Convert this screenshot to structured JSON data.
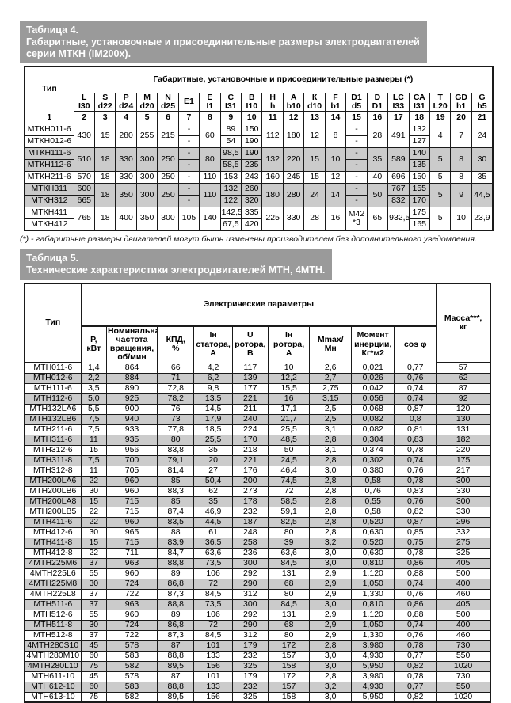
{
  "colors": {
    "title_bar_bg": "#9a9a9a",
    "title_text": "#ffffff",
    "row_shade": "#cbcbcb",
    "border": "#1a1a1a",
    "page_bg": "#ffffff"
  },
  "table4": {
    "title_lines": [
      "Таблица  4.",
      "Габаритные, установочные и присоединительные размеры электродвигателей",
      "серии МТКН (IM200x)."
    ],
    "footnote": "(*) - габаритные размеры двигателей могут быть изменены производителем без дополнительного уведомления.",
    "head": [
      [
        {
          "t": "Тип",
          "rs": 2
        },
        {
          "t": "Габаритные, установочные и присоединительные размеры (*)",
          "cs": 20
        }
      ],
      [
        {
          "t": "L\nI30"
        },
        {
          "t": "S\nd22"
        },
        {
          "t": "P\nd24"
        },
        {
          "t": "M\nd20"
        },
        {
          "t": "N\nd25"
        },
        {
          "t": "Е1"
        },
        {
          "t": "Е\nI1"
        },
        {
          "t": "С\nI31"
        },
        {
          "t": "В\nI10"
        },
        {
          "t": "Н\nh"
        },
        {
          "t": "А\nb10"
        },
        {
          "t": "К\nd10"
        },
        {
          "t": "F\nb1"
        },
        {
          "t": "D1\nd5"
        },
        {
          "t": "D\nD1"
        },
        {
          "t": "LC\nI33"
        },
        {
          "t": "СА\nI31"
        },
        {
          "t": "Т\nL20"
        },
        {
          "t": "GD\nh1"
        },
        {
          "t": "G\nh5"
        }
      ],
      [
        "1",
        "2",
        "3",
        "4",
        "5",
        "6",
        "7",
        "8",
        "9",
        "10",
        "11",
        "12",
        "13",
        "14",
        "15",
        "16",
        "17",
        "18",
        "19",
        "20",
        "21"
      ]
    ],
    "rows": [
      {
        "shade": false,
        "cells": [
          "МТКН011-6",
          {
            "t": "430",
            "rs": 2
          },
          {
            "t": "15",
            "rs": 2
          },
          {
            "t": "280",
            "rs": 2
          },
          {
            "t": "255",
            "rs": 2
          },
          {
            "t": "215",
            "rs": 2
          },
          "-",
          {
            "t": "60",
            "rs": 2
          },
          "89",
          "150",
          {
            "t": "112",
            "rs": 2
          },
          {
            "t": "180",
            "rs": 2
          },
          {
            "t": "12",
            "rs": 2
          },
          {
            "t": "8",
            "rs": 2
          },
          "-",
          {
            "t": "28",
            "rs": 2
          },
          {
            "t": "491",
            "rs": 2
          },
          "132",
          {
            "t": "4",
            "rs": 2
          },
          {
            "t": "7",
            "rs": 2
          },
          {
            "t": "24",
            "rs": 2
          }
        ]
      },
      {
        "shade": false,
        "cells": [
          "МТКН012-6",
          "-",
          "54",
          "190",
          "-",
          "127"
        ]
      },
      {
        "shade": true,
        "cells": [
          "МТКН111-6",
          {
            "t": "510",
            "rs": 2
          },
          {
            "t": "18",
            "rs": 2
          },
          {
            "t": "330",
            "rs": 2
          },
          {
            "t": "300",
            "rs": 2
          },
          {
            "t": "250",
            "rs": 2
          },
          "-",
          {
            "t": "80",
            "rs": 2
          },
          "98,5",
          "190",
          {
            "t": "132",
            "rs": 2
          },
          {
            "t": "220",
            "rs": 2
          },
          {
            "t": "15",
            "rs": 2
          },
          {
            "t": "10",
            "rs": 2
          },
          "-",
          {
            "t": "35",
            "rs": 2
          },
          {
            "t": "589",
            "rs": 2
          },
          "140",
          {
            "t": "5",
            "rs": 2
          },
          {
            "t": "8",
            "rs": 2
          },
          {
            "t": "30",
            "rs": 2
          }
        ]
      },
      {
        "shade": true,
        "cells": [
          "МТКН112-6",
          "-",
          "58,5",
          "235",
          "-",
          "135"
        ]
      },
      {
        "shade": false,
        "cells": [
          "МТКН211-6",
          "570",
          "18",
          "330",
          "300",
          "250",
          "-",
          "110",
          "153",
          "243",
          "160",
          "245",
          "15",
          "12",
          "-",
          "40",
          "696",
          "150",
          "5",
          "8",
          "35"
        ]
      },
      {
        "shade": true,
        "cells": [
          "МТКН311",
          "600",
          {
            "t": "18",
            "rs": 2
          },
          {
            "t": "350",
            "rs": 2
          },
          {
            "t": "300",
            "rs": 2
          },
          {
            "t": "250",
            "rs": 2
          },
          "-",
          {
            "t": "110",
            "rs": 2
          },
          "132",
          "260",
          {
            "t": "180",
            "rs": 2
          },
          {
            "t": "280",
            "rs": 2
          },
          {
            "t": "24",
            "rs": 2
          },
          {
            "t": "14",
            "rs": 2
          },
          "-",
          {
            "t": "50",
            "rs": 2
          },
          "767",
          "155",
          {
            "t": "5",
            "rs": 2
          },
          {
            "t": "9",
            "rs": 2
          },
          {
            "t": "44,5",
            "rs": 2
          }
        ]
      },
      {
        "shade": true,
        "cells": [
          "МТКН312",
          "665",
          "-",
          "122",
          "320",
          "-",
          "832",
          "170"
        ]
      },
      {
        "shade": false,
        "cells": [
          "МТКН411",
          {
            "t": "765",
            "rs": 2
          },
          {
            "t": "18",
            "rs": 2
          },
          {
            "t": "400",
            "rs": 2
          },
          {
            "t": "350",
            "rs": 2
          },
          {
            "t": "300",
            "rs": 2
          },
          {
            "t": "105",
            "rs": 2
          },
          {
            "t": "140",
            "rs": 2
          },
          "142,5",
          "335",
          {
            "t": "225",
            "rs": 2
          },
          {
            "t": "330",
            "rs": 2
          },
          {
            "t": "28",
            "rs": 2
          },
          {
            "t": "16",
            "rs": 2
          },
          {
            "t": "М42\n*3",
            "rs": 2
          },
          {
            "t": "65",
            "rs": 2
          },
          {
            "t": "932,5",
            "rs": 2
          },
          "175",
          {
            "t": "5",
            "rs": 2
          },
          {
            "t": "10",
            "rs": 2
          },
          {
            "t": "23,9",
            "rs": 2
          }
        ]
      },
      {
        "shade": false,
        "cells": [
          "МТКН412",
          "67,5",
          "420",
          "165"
        ]
      }
    ]
  },
  "table5": {
    "title_lines": [
      "Таблица  5.",
      "Технические характеристики электродвигателей МТН, 4МТН."
    ],
    "head": [
      [
        {
          "t": "Тип",
          "rs": 2
        },
        {
          "t": "Электрические параметры",
          "cs": 9
        },
        {
          "t": "Масса***,\nкг",
          "rs": 2
        }
      ],
      [
        {
          "t": "Р,\nкВт"
        },
        {
          "t": "Номинальная\nчастота\nвращения,\nоб/мин"
        },
        {
          "t": "КПД,\n%"
        },
        {
          "t": "Iн\nстатора,\nА"
        },
        {
          "t": "U\nротора,\nВ"
        },
        {
          "t": "Iн\nротора,\nА"
        },
        {
          "t": "Mmax/\nМн"
        },
        {
          "t": "Момент\nинерции,\nКг*м2"
        },
        {
          "t": "cos φ"
        }
      ]
    ],
    "zebra": true,
    "rows": [
      [
        "МТН011-6",
        "1,4",
        "864",
        "66",
        "4,2",
        "117",
        "10",
        "2,6",
        "0,021",
        "0,77",
        "57"
      ],
      [
        "МТН012-6",
        "2,2",
        "884",
        "71",
        "6,2",
        "139",
        "12,2",
        "2,7",
        "0,026",
        "0,76",
        "62"
      ],
      [
        "МТН111-6",
        "3,5",
        "890",
        "72,8",
        "9,8",
        "177",
        "15,5",
        "2,75",
        "0,042",
        "0,74",
        "87"
      ],
      [
        "МТН112-6",
        "5,0",
        "925",
        "78,2",
        "13,5",
        "221",
        "16",
        "3,15",
        "0,056",
        "0,74",
        "92"
      ],
      [
        "МТН132LA6",
        "5,5",
        "900",
        "76",
        "14,5",
        "211",
        "17,1",
        "2,5",
        "0,068",
        "0,87",
        "120"
      ],
      [
        "МТН132LB6",
        "7,5",
        "940",
        "73",
        "17,9",
        "240",
        "21,7",
        "2,5",
        "0,082",
        "0,8",
        "130"
      ],
      [
        "МТН211-6",
        "7,5",
        "933",
        "77,8",
        "18,5",
        "224",
        "25,5",
        "3,1",
        "0,082",
        "0,81",
        "131"
      ],
      [
        "МТН311-6",
        "11",
        "935",
        "80",
        "25,5",
        "170",
        "48,5",
        "2,8",
        "0,304",
        "0,83",
        "182"
      ],
      [
        "МТН312-6",
        "15",
        "956",
        "83,8",
        "35",
        "218",
        "50",
        "3,1",
        "0,374",
        "0,78",
        "220"
      ],
      [
        "МТН311-8",
        "7,5",
        "700",
        "79,1",
        "20",
        "221",
        "24,5",
        "2,8",
        "0,302",
        "0,74",
        "175"
      ],
      [
        "МТН312-8",
        "11",
        "705",
        "81,4",
        "27",
        "176",
        "46,4",
        "3,0",
        "0,380",
        "0,76",
        "217"
      ],
      [
        "МТН200LA6",
        "22",
        "960",
        "85",
        "50,4",
        "200",
        "74,5",
        "2,8",
        "0,58",
        "0,78",
        "300"
      ],
      [
        "МТН200LB6",
        "30",
        "960",
        "88,3",
        "62",
        "273",
        "72",
        "2,8",
        "0,76",
        "0,83",
        "330"
      ],
      [
        "МТН200LA8",
        "15",
        "715",
        "85",
        "35",
        "178",
        "58,5",
        "2,8",
        "0,55",
        "0,76",
        "300"
      ],
      [
        "МТН200LB5",
        "22",
        "715",
        "87,4",
        "46,9",
        "232",
        "59,1",
        "2,8",
        "0,58",
        "0,82",
        "330"
      ],
      [
        "МТН411-6",
        "22",
        "960",
        "83,5",
        "44,5",
        "187",
        "82,5",
        "2,8",
        "0,520",
        "0,87",
        "296"
      ],
      [
        "МТН412-6",
        "30",
        "965",
        "88",
        "61",
        "248",
        "80",
        "2,8",
        "0,630",
        "0,85",
        "332"
      ],
      [
        "МТН411-8",
        "15",
        "715",
        "83,9",
        "36,5",
        "258",
        "39",
        "3,2",
        "0,520",
        "0,75",
        "275"
      ],
      [
        "МТН412-8",
        "22",
        "711",
        "84,7",
        "63,6",
        "236",
        "63,6",
        "3,0",
        "0,630",
        "0,78",
        "325"
      ],
      [
        "4МТН225М6",
        "37",
        "963",
        "88,8",
        "73,5",
        "300",
        "84,5",
        "3,0",
        "0,810",
        "0,86",
        "405"
      ],
      [
        "4МТН225L6",
        "55",
        "960",
        "89",
        "106",
        "292",
        "131",
        "2,9",
        "1,120",
        "0,88",
        "500"
      ],
      [
        "4МТН225М8",
        "30",
        "724",
        "86,8",
        "72",
        "290",
        "68",
        "2,9",
        "1,050",
        "0,74",
        "400"
      ],
      [
        "4МТН225L8",
        "37",
        "722",
        "87,3",
        "84,5",
        "312",
        "80",
        "2,9",
        "1,330",
        "0,76",
        "460"
      ],
      [
        "МТН511-6",
        "37",
        "963",
        "88,8",
        "73,5",
        "300",
        "84,5",
        "3,0",
        "0,810",
        "0,86",
        "405"
      ],
      [
        "МТН512-6",
        "55",
        "960",
        "89",
        "106",
        "292",
        "131",
        "2,9",
        "1,120",
        "0,88",
        "500"
      ],
      [
        "МТН511-8",
        "30",
        "724",
        "86,8",
        "72",
        "290",
        "68",
        "2,9",
        "1,050",
        "0,74",
        "400"
      ],
      [
        "МТН512-8",
        "37",
        "722",
        "87,3",
        "84,5",
        "312",
        "80",
        "2,9",
        "1,330",
        "0,76",
        "460"
      ],
      [
        "4МТН280S10",
        "45",
        "578",
        "87",
        "101",
        "179",
        "172",
        "2,8",
        "3.980",
        "0,78",
        "730"
      ],
      [
        "4МТН280M10",
        "60",
        "583",
        "88,8",
        "133",
        "232",
        "157",
        "3,0",
        "4,930",
        "0,77",
        "550"
      ],
      [
        "4МТН280L10",
        "75",
        "582",
        "89,5",
        "156",
        "325",
        "158",
        "3,0",
        "5,950",
        "0,82",
        "1020"
      ],
      [
        "МТН611-10",
        "45",
        "578",
        "87",
        "101",
        "179",
        "172",
        "2,8",
        "3,980",
        "0,78",
        "730"
      ],
      [
        "МТН612-10",
        "60",
        "583",
        "88,8",
        "133",
        "232",
        "157",
        "3,2",
        "4,930",
        "0,77",
        "550"
      ],
      [
        "МТН613-10",
        "75",
        "582",
        "89,5",
        "156",
        "325",
        "158",
        "3,0",
        "5,950",
        "0,82",
        "1020"
      ]
    ]
  }
}
